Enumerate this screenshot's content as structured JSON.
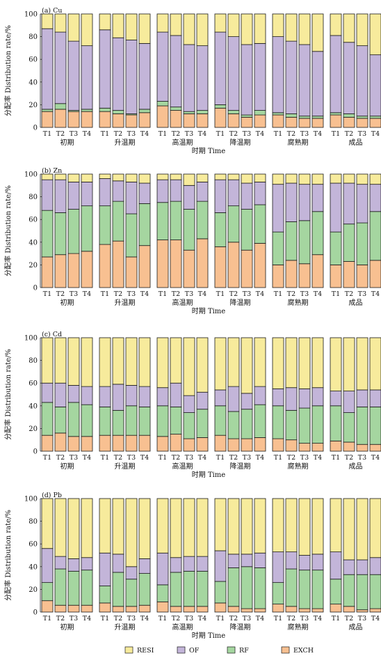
{
  "legend": [
    {
      "label": "RESI",
      "color": "#f7eb9c"
    },
    {
      "label": "OF",
      "color": "#c3b5d9"
    },
    {
      "label": "RF",
      "color": "#a5d6a0"
    },
    {
      "label": "EXCH",
      "color": "#f8c091"
    }
  ],
  "chart_data": [
    {
      "type": "bar",
      "stacked": true,
      "title": "(a) Cu",
      "ylabel": "分配率 Distribution rate/%",
      "xlabel": "时期 Time",
      "ylim": [
        0,
        100
      ],
      "yticks": [
        0,
        20,
        40,
        60,
        80,
        100
      ],
      "groups": [
        "初期",
        "升温期",
        "高温期",
        "降温期",
        "腐熟期",
        "成品"
      ],
      "treatments": [
        "T1",
        "T2",
        "T3",
        "T4"
      ],
      "series": [
        {
          "name": "EXCH",
          "values": [
            [
              14,
              16,
              14,
              14
            ],
            [
              14,
              12,
              11,
              13
            ],
            [
              19,
              15,
              12,
              12
            ],
            [
              17,
              12,
              9,
              11
            ],
            [
              11,
              9,
              8,
              8
            ],
            [
              11,
              9,
              8,
              8
            ]
          ]
        },
        {
          "name": "RF",
          "values": [
            [
              2,
              5,
              1,
              2
            ],
            [
              3,
              3,
              1,
              3
            ],
            [
              4,
              3,
              2,
              3
            ],
            [
              3,
              3,
              2,
              4
            ],
            [
              2,
              3,
              2,
              2
            ],
            [
              2,
              3,
              2,
              2
            ]
          ]
        },
        {
          "name": "OF",
          "values": [
            [
              71,
              63,
              61,
              56
            ],
            [
              69,
              64,
              65,
              58
            ],
            [
              61,
              63,
              59,
              57
            ],
            [
              64,
              65,
              62,
              59
            ],
            [
              67,
              64,
              63,
              57
            ],
            [
              68,
              63,
              62,
              54
            ]
          ]
        },
        {
          "name": "RESI",
          "values": [
            [
              13,
              16,
              24,
              28
            ],
            [
              14,
              21,
              23,
              26
            ],
            [
              16,
              19,
              27,
              28
            ],
            [
              16,
              20,
              27,
              26
            ],
            [
              20,
              24,
              27,
              33
            ],
            [
              19,
              25,
              28,
              36
            ]
          ]
        }
      ]
    },
    {
      "type": "bar",
      "stacked": true,
      "title": "(b) Zn",
      "ylabel": "分配率 Distribution rate/%",
      "xlabel": "时期 Time",
      "ylim": [
        0,
        100
      ],
      "yticks": [
        0,
        20,
        40,
        60,
        80,
        100
      ],
      "groups": [
        "初期",
        "升温期",
        "高温期",
        "降温期",
        "腐熟期",
        "成品"
      ],
      "treatments": [
        "T1",
        "T2",
        "T3",
        "T4"
      ],
      "series": [
        {
          "name": "EXCH",
          "values": [
            [
              27,
              29,
              30,
              32
            ],
            [
              38,
              41,
              27,
              37
            ],
            [
              42,
              42,
              33,
              43
            ],
            [
              36,
              40,
              33,
              39
            ],
            [
              20,
              24,
              21,
              29
            ],
            [
              20,
              23,
              20,
              24
            ]
          ]
        },
        {
          "name": "RF",
          "values": [
            [
              41,
              37,
              39,
              40
            ],
            [
              34,
              35,
              38,
              37
            ],
            [
              33,
              34,
              36,
              33
            ],
            [
              30,
              32,
              36,
              34
            ],
            [
              29,
              34,
              38,
              38
            ],
            [
              29,
              33,
              37,
              43
            ]
          ]
        },
        {
          "name": "OF",
          "values": [
            [
              27,
              29,
              24,
              21
            ],
            [
              24,
              18,
              28,
              18
            ],
            [
              20,
              19,
              21,
              17
            ],
            [
              29,
              23,
              23,
              20
            ],
            [
              42,
              34,
              32,
              24
            ],
            [
              43,
              36,
              34,
              24
            ]
          ]
        },
        {
          "name": "RESI",
          "values": [
            [
              5,
              5,
              7,
              7
            ],
            [
              4,
              6,
              7,
              8
            ],
            [
              5,
              5,
              10,
              7
            ],
            [
              5,
              5,
              8,
              7
            ],
            [
              9,
              8,
              9,
              9
            ],
            [
              8,
              8,
              9,
              9
            ]
          ]
        }
      ]
    },
    {
      "type": "bar",
      "stacked": true,
      "title": "(c) Cd",
      "ylabel": "分配率 Distribution rate/%",
      "xlabel": "时期 Time",
      "ylim": [
        0,
        100
      ],
      "yticks": [
        0,
        20,
        40,
        60,
        80,
        100
      ],
      "groups": [
        "初期",
        "升温期",
        "高温期",
        "降温期",
        "腐熟期",
        "成品"
      ],
      "treatments": [
        "T1",
        "T2",
        "T3",
        "T4"
      ],
      "series": [
        {
          "name": "EXCH",
          "values": [
            [
              14,
              16,
              13,
              13
            ],
            [
              14,
              14,
              14,
              14
            ],
            [
              13,
              15,
              11,
              12
            ],
            [
              14,
              11,
              11,
              12
            ],
            [
              11,
              10,
              7,
              7
            ],
            [
              9,
              8,
              6,
              6
            ]
          ]
        },
        {
          "name": "RF",
          "values": [
            [
              29,
              23,
              30,
              28
            ],
            [
              25,
              22,
              26,
              25
            ],
            [
              27,
              24,
              23,
              25
            ],
            [
              26,
              24,
              26,
              29
            ],
            [
              29,
              26,
              31,
              33
            ],
            [
              31,
              26,
              33,
              33
            ]
          ]
        },
        {
          "name": "OF",
          "values": [
            [
              17,
              21,
              15,
              16
            ],
            [
              18,
              23,
              18,
              18
            ],
            [
              16,
              21,
              15,
              15
            ],
            [
              14,
              22,
              14,
              16
            ],
            [
              15,
              20,
              17,
              16
            ],
            [
              13,
              19,
              15,
              15
            ]
          ]
        },
        {
          "name": "RESI",
          "values": [
            [
              40,
              40,
              42,
              43
            ],
            [
              43,
              41,
              42,
              43
            ],
            [
              44,
              40,
              51,
              48
            ],
            [
              46,
              43,
              49,
              43
            ],
            [
              45,
              44,
              45,
              44
            ],
            [
              47,
              47,
              46,
              46
            ]
          ]
        }
      ]
    },
    {
      "type": "bar",
      "stacked": true,
      "title": "(d) Pb",
      "ylabel": "分配率 Distribution rate/%",
      "xlabel": "时期 Time",
      "ylim": [
        0,
        100
      ],
      "yticks": [
        0,
        20,
        40,
        60,
        80,
        100
      ],
      "groups": [
        "初期",
        "升温期",
        "高温期",
        "降温期",
        "腐熟期",
        "成品"
      ],
      "treatments": [
        "T1",
        "T2",
        "T3",
        "T4"
      ],
      "series": [
        {
          "name": "EXCH",
          "values": [
            [
              10,
              6,
              6,
              6
            ],
            [
              8,
              5,
              5,
              6
            ],
            [
              9,
              5,
              5,
              5
            ],
            [
              8,
              5,
              3,
              3
            ],
            [
              7,
              5,
              3,
              3
            ],
            [
              7,
              5,
              2,
              3
            ]
          ]
        },
        {
          "name": "RF",
          "values": [
            [
              16,
              32,
              30,
              31
            ],
            [
              15,
              30,
              24,
              28
            ],
            [
              15,
              30,
              31,
              31
            ],
            [
              19,
              34,
              37,
              36
            ],
            [
              19,
              33,
              34,
              34
            ],
            [
              22,
              28,
              31,
              30
            ]
          ]
        },
        {
          "name": "OF",
          "values": [
            [
              30,
              11,
              11,
              11
            ],
            [
              29,
              16,
              11,
              13
            ],
            [
              28,
              13,
              13,
              13
            ],
            [
              27,
              12,
              11,
              13
            ],
            [
              27,
              15,
              13,
              14
            ],
            [
              24,
              13,
              13,
              15
            ]
          ]
        },
        {
          "name": "RESI",
          "values": [
            [
              44,
              51,
              53,
              52
            ],
            [
              48,
              49,
              60,
              53
            ],
            [
              48,
              52,
              51,
              51
            ],
            [
              46,
              49,
              49,
              48
            ],
            [
              47,
              47,
              50,
              49
            ],
            [
              47,
              54,
              54,
              52
            ]
          ]
        }
      ]
    }
  ]
}
